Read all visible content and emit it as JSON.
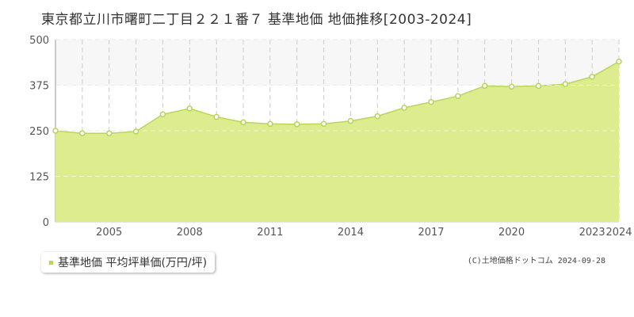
{
  "title": "東京都立川市曙町二丁目２２１番７ 基準地価 地価推移[2003-2024]",
  "legend": {
    "label": "基準地価 平均坪単価(万円/坪)"
  },
  "credit": "(C)土地価格ドットコム 2024-09-28",
  "colors": {
    "area_fill": "#dcec8e",
    "line": "#b8d75a",
    "marker_stroke": "#b5d45a",
    "marker_fill": "#ffffff",
    "grid": "#cccccc",
    "band": "#f7f7f7",
    "axis_text": "#555555"
  },
  "chart_data": {
    "type": "area",
    "x": [
      2003,
      2004,
      2005,
      2006,
      2007,
      2008,
      2009,
      2010,
      2011,
      2012,
      2013,
      2014,
      2015,
      2016,
      2017,
      2018,
      2019,
      2020,
      2021,
      2022,
      2023,
      2024
    ],
    "series": [
      {
        "name": "基準地価 平均坪単価(万円/坪)",
        "values": [
          250,
          243,
          243,
          248,
          295,
          311,
          288,
          273,
          269,
          268,
          269,
          277,
          290,
          313,
          329,
          345,
          373,
          371,
          373,
          378,
          398,
          440
        ]
      }
    ],
    "xlim": [
      2003,
      2024
    ],
    "ylim": [
      0,
      500
    ],
    "yticks": [
      0,
      125,
      250,
      375,
      500
    ],
    "xtick_labels": [
      "2005",
      "2008",
      "2011",
      "2014",
      "2017",
      "2020",
      "2023",
      "2024"
    ],
    "grid": true,
    "legend_position": "bottom-left"
  }
}
